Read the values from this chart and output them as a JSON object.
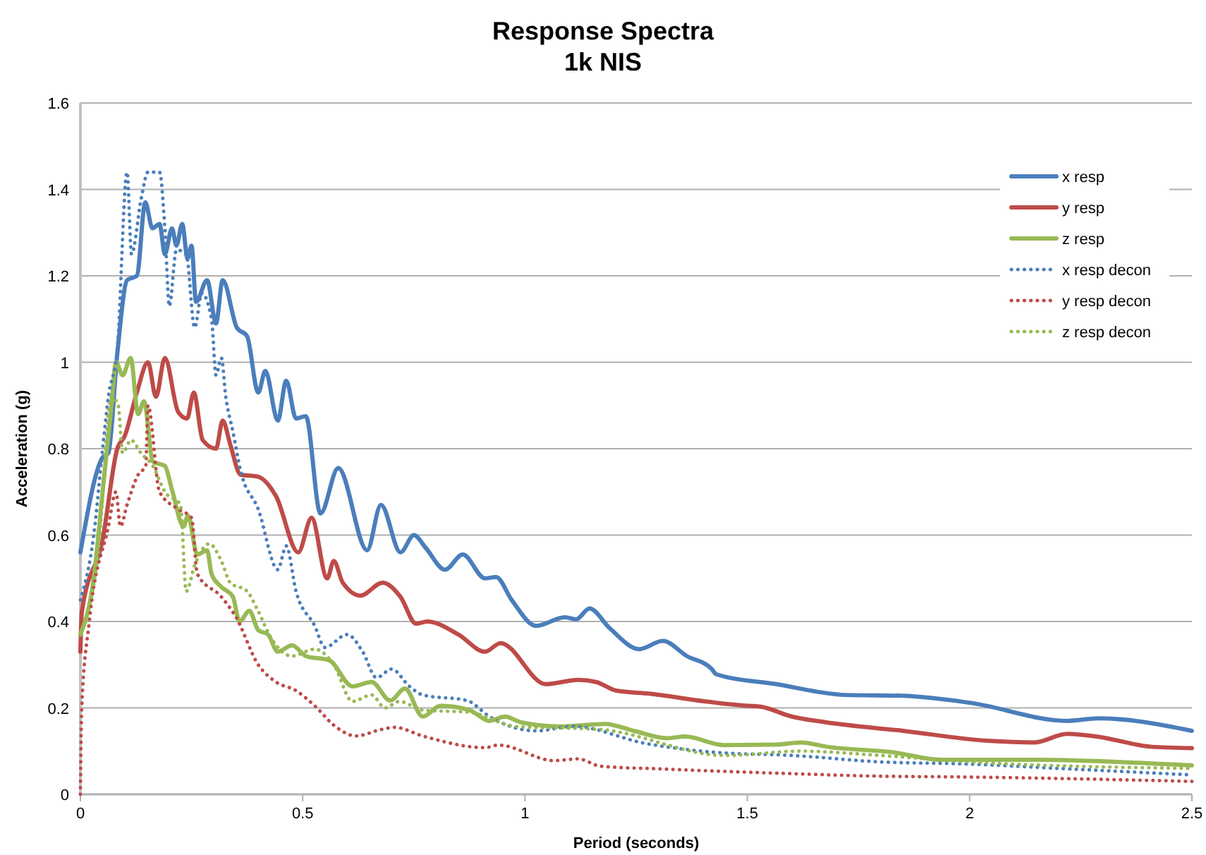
{
  "chart_data": {
    "type": "line",
    "title": "Response Spectra",
    "subtitle": "1k NIS",
    "xlabel": "Period (seconds)",
    "ylabel": "Acceleration (g)",
    "xlim": [
      0,
      2.5
    ],
    "xticks": [
      0,
      0.5,
      1,
      1.5,
      2,
      2.5
    ],
    "ylim": [
      0,
      1.6
    ],
    "yticks": [
      0,
      0.2,
      0.4,
      0.6,
      0.8,
      1,
      1.2,
      1.4,
      1.6
    ],
    "grid": "y",
    "legend": "top right",
    "marker": "none",
    "series": [
      {
        "name": "x resp",
        "color": "#4a7ebb",
        "line_style": "solid",
        "x": [
          0,
          0.05,
          0.063,
          0.083,
          0.105,
          0.127,
          0.146,
          0.162,
          0.178,
          0.19,
          0.206,
          0.216,
          0.229,
          0.241,
          0.25,
          0.26,
          0.285,
          0.305,
          0.32,
          0.352,
          0.375,
          0.4,
          0.416,
          0.444,
          0.463,
          0.485,
          0.507,
          0.54,
          0.58,
          0.645,
          0.676,
          0.72,
          0.75,
          0.777,
          0.82,
          0.86,
          0.91,
          0.935,
          0.97,
          1.025,
          1.09,
          1.115,
          1.145,
          1.19,
          1.257,
          1.31,
          1.364,
          1.42,
          1.43,
          1.565,
          1.72,
          1.85,
          2.0,
          2.22,
          2.29,
          2.5
        ],
        "values": [
          0.56,
          0.78,
          0.79,
          1.02,
          1.19,
          1.2,
          1.37,
          1.31,
          1.32,
          1.25,
          1.31,
          1.27,
          1.32,
          1.24,
          1.27,
          1.14,
          1.19,
          1.09,
          1.19,
          1.08,
          1.06,
          0.93,
          0.98,
          0.865,
          0.957,
          0.87,
          0.875,
          0.65,
          0.755,
          0.565,
          0.67,
          0.56,
          0.6,
          0.57,
          0.52,
          0.555,
          0.5,
          0.503,
          0.45,
          0.39,
          0.41,
          0.405,
          0.43,
          0.385,
          0.336,
          0.355,
          0.32,
          0.29,
          0.278,
          0.255,
          0.23,
          0.228,
          0.212,
          0.17,
          0.176,
          0.147
        ]
      },
      {
        "name": "y resp",
        "color": "#be4b48",
        "line_style": "solid",
        "x": [
          0,
          0.003,
          0.05,
          0.083,
          0.1,
          0.127,
          0.152,
          0.17,
          0.19,
          0.22,
          0.24,
          0.255,
          0.275,
          0.305,
          0.32,
          0.337,
          0.36,
          0.4,
          0.44,
          0.49,
          0.52,
          0.555,
          0.57,
          0.59,
          0.63,
          0.68,
          0.72,
          0.755,
          0.78,
          0.85,
          0.91,
          0.945,
          1.047,
          1.12,
          1.16,
          1.205,
          1.28,
          1.405,
          1.5,
          1.53,
          1.6,
          1.675,
          1.85,
          2.04,
          2.145,
          2.22,
          2.285,
          2.41,
          2.5
        ],
        "values": [
          0.33,
          0.42,
          0.59,
          0.8,
          0.83,
          0.93,
          1.0,
          0.92,
          1.01,
          0.885,
          0.87,
          0.93,
          0.82,
          0.8,
          0.865,
          0.81,
          0.74,
          0.735,
          0.69,
          0.56,
          0.64,
          0.5,
          0.54,
          0.49,
          0.46,
          0.49,
          0.457,
          0.395,
          0.4,
          0.37,
          0.33,
          0.35,
          0.255,
          0.265,
          0.26,
          0.24,
          0.233,
          0.215,
          0.205,
          0.203,
          0.18,
          0.167,
          0.147,
          0.124,
          0.12,
          0.14,
          0.134,
          0.11,
          0.107
        ]
      },
      {
        "name": "z resp",
        "color": "#98b954",
        "line_style": "solid",
        "x": [
          0,
          0.03,
          0.05,
          0.07,
          0.08,
          0.095,
          0.113,
          0.13,
          0.143,
          0.163,
          0.19,
          0.206,
          0.232,
          0.242,
          0.263,
          0.285,
          0.295,
          0.317,
          0.343,
          0.358,
          0.38,
          0.4,
          0.422,
          0.444,
          0.476,
          0.507,
          0.56,
          0.612,
          0.655,
          0.697,
          0.73,
          0.77,
          0.81,
          0.875,
          0.92,
          0.955,
          0.99,
          1.08,
          1.18,
          1.245,
          1.32,
          1.36,
          1.447,
          1.565,
          1.62,
          1.68,
          1.83,
          1.935,
          2.145,
          2.5
        ],
        "values": [
          0.37,
          0.5,
          0.7,
          0.9,
          1.0,
          0.97,
          1.01,
          0.88,
          0.91,
          0.77,
          0.76,
          0.705,
          0.62,
          0.645,
          0.555,
          0.565,
          0.51,
          0.48,
          0.457,
          0.4,
          0.425,
          0.38,
          0.37,
          0.33,
          0.345,
          0.32,
          0.31,
          0.25,
          0.26,
          0.217,
          0.245,
          0.18,
          0.205,
          0.195,
          0.17,
          0.18,
          0.167,
          0.157,
          0.163,
          0.147,
          0.13,
          0.134,
          0.114,
          0.115,
          0.12,
          0.11,
          0.097,
          0.08,
          0.08,
          0.067
        ]
      },
      {
        "name": "x resp decon",
        "color": "#4a7ebb",
        "line_style": "dotted",
        "x": [
          0,
          0.03,
          0.05,
          0.063,
          0.083,
          0.105,
          0.115,
          0.137,
          0.152,
          0.178,
          0.19,
          0.2,
          0.216,
          0.238,
          0.257,
          0.273,
          0.295,
          0.305,
          0.317,
          0.327,
          0.343,
          0.36,
          0.4,
          0.444,
          0.463,
          0.485,
          0.527,
          0.55,
          0.6,
          0.635,
          0.666,
          0.7,
          0.74,
          0.77,
          0.87,
          0.92,
          1.025,
          1.11,
          1.27,
          1.43,
          1.6,
          1.8,
          2.0,
          2.2,
          2.5
        ],
        "values": [
          0.45,
          0.6,
          0.8,
          0.92,
          1.03,
          1.44,
          1.25,
          1.38,
          1.44,
          1.44,
          1.31,
          1.13,
          1.26,
          1.25,
          1.08,
          1.16,
          1.1,
          0.97,
          1.01,
          0.92,
          0.84,
          0.75,
          0.66,
          0.52,
          0.575,
          0.47,
          0.39,
          0.34,
          0.37,
          0.33,
          0.27,
          0.29,
          0.25,
          0.23,
          0.217,
          0.18,
          0.147,
          0.157,
          0.118,
          0.097,
          0.09,
          0.075,
          0.07,
          0.06,
          0.045
        ]
      },
      {
        "name": "y resp decon",
        "color": "#be4b48",
        "line_style": "dotted",
        "x": [
          0,
          0.003,
          0.02,
          0.063,
          0.08,
          0.09,
          0.105,
          0.13,
          0.147,
          0.152,
          0.178,
          0.22,
          0.25,
          0.263,
          0.317,
          0.35,
          0.4,
          0.44,
          0.485,
          0.527,
          0.57,
          0.62,
          0.676,
          0.707,
          0.77,
          0.91,
          0.94,
          1.066,
          1.12,
          1.17,
          1.3,
          1.565,
          1.8,
          2.0,
          2.5
        ],
        "values": [
          0,
          0.2,
          0.4,
          0.62,
          0.7,
          0.62,
          0.67,
          0.74,
          0.76,
          0.9,
          0.7,
          0.66,
          0.64,
          0.51,
          0.457,
          0.41,
          0.3,
          0.26,
          0.24,
          0.205,
          0.16,
          0.135,
          0.15,
          0.155,
          0.135,
          0.108,
          0.114,
          0.078,
          0.082,
          0.065,
          0.059,
          0.049,
          0.042,
          0.04,
          0.03
        ]
      },
      {
        "name": "z resp decon",
        "color": "#98b954",
        "line_style": "dotted",
        "x": [
          0,
          0.04,
          0.07,
          0.085,
          0.095,
          0.114,
          0.136,
          0.163,
          0.19,
          0.225,
          0.238,
          0.257,
          0.29,
          0.317,
          0.337,
          0.375,
          0.397,
          0.43,
          0.476,
          0.527,
          0.57,
          0.612,
          0.655,
          0.685,
          0.717,
          0.77,
          0.875,
          0.98,
          1.17,
          1.45,
          1.62,
          1.8,
          2.0,
          2.5
        ],
        "values": [
          0.37,
          0.56,
          0.92,
          0.9,
          0.79,
          0.82,
          0.79,
          0.76,
          0.7,
          0.67,
          0.47,
          0.53,
          0.58,
          0.54,
          0.49,
          0.47,
          0.43,
          0.36,
          0.32,
          0.336,
          0.3,
          0.215,
          0.23,
          0.2,
          0.215,
          0.195,
          0.19,
          0.157,
          0.15,
          0.09,
          0.1,
          0.09,
          0.075,
          0.06
        ]
      }
    ]
  }
}
